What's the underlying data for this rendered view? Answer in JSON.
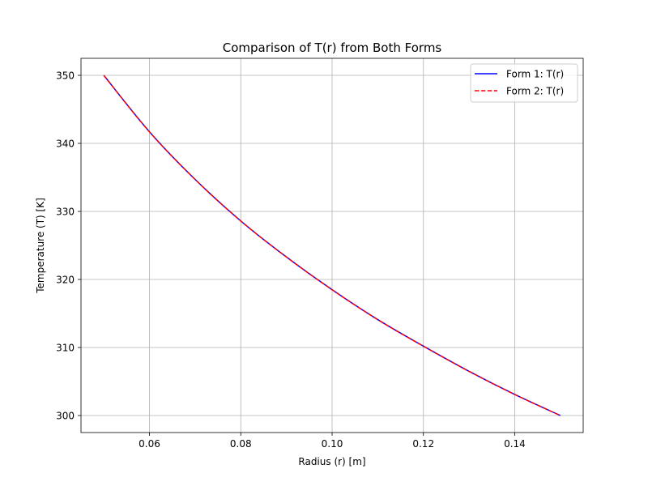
{
  "chart_data": {
    "type": "line",
    "title": "Comparison of T(r) from Both Forms",
    "xlabel": "Radius (r) [m]",
    "ylabel": "Temperature (T) [K]",
    "xlim": [
      0.045,
      0.155
    ],
    "ylim": [
      297.5,
      352.5
    ],
    "xticks": [
      0.06,
      0.08,
      0.1,
      0.12,
      0.14
    ],
    "xtick_labels": [
      "0.06",
      "0.08",
      "0.10",
      "0.12",
      "0.14"
    ],
    "yticks": [
      300,
      310,
      320,
      330,
      340,
      350
    ],
    "ytick_labels": [
      "300",
      "310",
      "320",
      "330",
      "340",
      "350"
    ],
    "grid": true,
    "legend_position": "top-right",
    "x": [
      0.05,
      0.06,
      0.07,
      0.08,
      0.09,
      0.1,
      0.11,
      0.12,
      0.13,
      0.14,
      0.15
    ],
    "series": [
      {
        "name": "Form 1: T(r)",
        "color": "#0000ff",
        "style": "solid",
        "values": [
          350.0,
          341.7,
          334.7,
          328.6,
          323.3,
          318.5,
          314.1,
          310.2,
          306.5,
          303.1,
          300.0
        ]
      },
      {
        "name": "Form 2: T(r)",
        "color": "#ff0000",
        "style": "dashed",
        "values": [
          350.0,
          341.7,
          334.7,
          328.6,
          323.3,
          318.5,
          314.1,
          310.2,
          306.5,
          303.1,
          300.0
        ]
      }
    ]
  }
}
